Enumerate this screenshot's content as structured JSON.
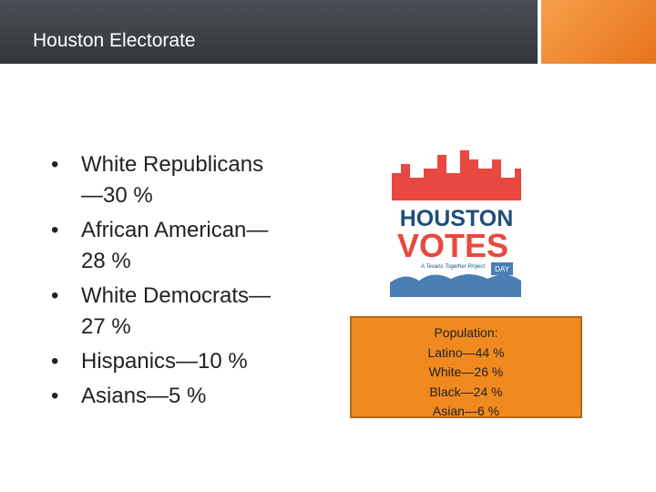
{
  "header": {
    "title": "Houston Electorate"
  },
  "bullets": [
    "White Republicans —30 %",
    "African American—28 %",
    "White Democrats—27 %",
    "Hispanics—10 %",
    "Asians—5 %"
  ],
  "logo": {
    "line1": "HOUSTON",
    "line2": "VOTES",
    "tagline": "A Texans Together Project",
    "badge": "DAY"
  },
  "callout": {
    "lines": [
      "Population:",
      "Latino—44 %",
      "White—26 %",
      "Black—24 %",
      "Asian—6 %"
    ]
  }
}
